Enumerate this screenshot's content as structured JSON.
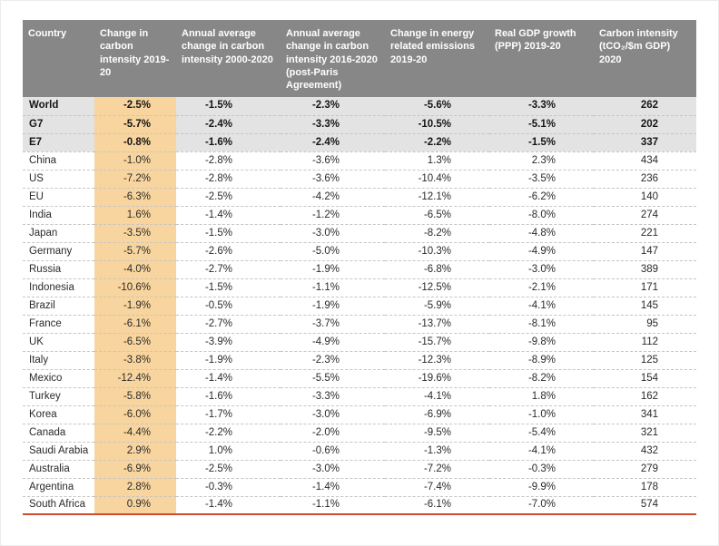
{
  "colors": {
    "header_bg": "#878787",
    "header_text": "#ffffff",
    "highlight_column_bg": "#f8d59e",
    "aggregate_row_bg": "#e3e3e3",
    "row_bg": "#ffffff",
    "bottom_rule": "#cf4b2e",
    "separator": "#c5c5c5",
    "body_text": "#2a2a2a"
  },
  "chart_data": {
    "type": "table",
    "columns": [
      "Country",
      "Change in carbon intensity 2019-20",
      "Annual average change in carbon intensity 2000-2020",
      "Annual average change in carbon intensity 2016-2020 (post-Paris Agreement)",
      "Change in energy related emissions 2019-20",
      "Real GDP growth (PPP) 2019-20",
      "Carbon intensity (tCO₂/$m GDP) 2020"
    ],
    "highlight_column": "Change in carbon intensity 2019-20",
    "rows": [
      {
        "label": "World",
        "aggregate": true,
        "values": [
          "-2.5%",
          "-1.5%",
          "-2.3%",
          "-5.6%",
          "-3.3%",
          "262"
        ]
      },
      {
        "label": "G7",
        "aggregate": true,
        "values": [
          "-5.7%",
          "-2.4%",
          "-3.3%",
          "-10.5%",
          "-5.1%",
          "202"
        ]
      },
      {
        "label": "E7",
        "aggregate": true,
        "values": [
          "-0.8%",
          "-1.6%",
          "-2.4%",
          "-2.2%",
          "-1.5%",
          "337"
        ]
      },
      {
        "label": "China",
        "aggregate": false,
        "values": [
          "-1.0%",
          "-2.8%",
          "-3.6%",
          "1.3%",
          "2.3%",
          "434"
        ]
      },
      {
        "label": "US",
        "aggregate": false,
        "values": [
          "-7.2%",
          "-2.8%",
          "-3.6%",
          "-10.4%",
          "-3.5%",
          "236"
        ]
      },
      {
        "label": "EU",
        "aggregate": false,
        "values": [
          "-6.3%",
          "-2.5%",
          "-4.2%",
          "-12.1%",
          "-6.2%",
          "140"
        ]
      },
      {
        "label": "India",
        "aggregate": false,
        "values": [
          "1.6%",
          "-1.4%",
          "-1.2%",
          "-6.5%",
          "-8.0%",
          "274"
        ]
      },
      {
        "label": "Japan",
        "aggregate": false,
        "values": [
          "-3.5%",
          "-1.5%",
          "-3.0%",
          "-8.2%",
          "-4.8%",
          "221"
        ]
      },
      {
        "label": "Germany",
        "aggregate": false,
        "values": [
          "-5.7%",
          "-2.6%",
          "-5.0%",
          "-10.3%",
          "-4.9%",
          "147"
        ]
      },
      {
        "label": "Russia",
        "aggregate": false,
        "values": [
          "-4.0%",
          "-2.7%",
          "-1.9%",
          "-6.8%",
          "-3.0%",
          "389"
        ]
      },
      {
        "label": "Indonesia",
        "aggregate": false,
        "values": [
          "-10.6%",
          "-1.5%",
          "-1.1%",
          "-12.5%",
          "-2.1%",
          "171"
        ]
      },
      {
        "label": "Brazil",
        "aggregate": false,
        "values": [
          "-1.9%",
          "-0.5%",
          "-1.9%",
          "-5.9%",
          "-4.1%",
          "145"
        ]
      },
      {
        "label": "France",
        "aggregate": false,
        "values": [
          "-6.1%",
          "-2.7%",
          "-3.7%",
          "-13.7%",
          "-8.1%",
          "95"
        ]
      },
      {
        "label": "UK",
        "aggregate": false,
        "values": [
          "-6.5%",
          "-3.9%",
          "-4.9%",
          "-15.7%",
          "-9.8%",
          "112"
        ]
      },
      {
        "label": "Italy",
        "aggregate": false,
        "values": [
          "-3.8%",
          "-1.9%",
          "-2.3%",
          "-12.3%",
          "-8.9%",
          "125"
        ]
      },
      {
        "label": "Mexico",
        "aggregate": false,
        "values": [
          "-12.4%",
          "-1.4%",
          "-5.5%",
          "-19.6%",
          "-8.2%",
          "154"
        ]
      },
      {
        "label": "Turkey",
        "aggregate": false,
        "values": [
          "-5.8%",
          "-1.6%",
          "-3.3%",
          "-4.1%",
          "1.8%",
          "162"
        ]
      },
      {
        "label": "Korea",
        "aggregate": false,
        "values": [
          "-6.0%",
          "-1.7%",
          "-3.0%",
          "-6.9%",
          "-1.0%",
          "341"
        ]
      },
      {
        "label": "Canada",
        "aggregate": false,
        "values": [
          "-4.4%",
          "-2.2%",
          "-2.0%",
          "-9.5%",
          "-5.4%",
          "321"
        ]
      },
      {
        "label": "Saudi Arabia",
        "aggregate": false,
        "values": [
          "2.9%",
          "1.0%",
          "-0.6%",
          "-1.3%",
          "-4.1%",
          "432"
        ]
      },
      {
        "label": "Australia",
        "aggregate": false,
        "values": [
          "-6.9%",
          "-2.5%",
          "-3.0%",
          "-7.2%",
          "-0.3%",
          "279"
        ]
      },
      {
        "label": "Argentina",
        "aggregate": false,
        "values": [
          "2.8%",
          "-0.3%",
          "-1.4%",
          "-7.4%",
          "-9.9%",
          "178"
        ]
      },
      {
        "label": "South Africa",
        "aggregate": false,
        "values": [
          "0.9%",
          "-1.4%",
          "-1.1%",
          "-6.1%",
          "-7.0%",
          "574"
        ]
      }
    ]
  }
}
